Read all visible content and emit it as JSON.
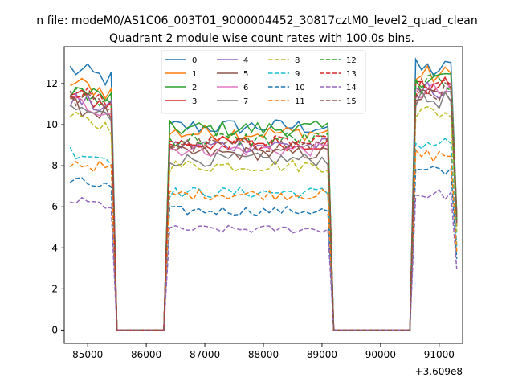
{
  "chart_data": {
    "type": "line",
    "suptitle": "n file: modeM0/AS1C06_003T01_9000004452_30817cztM0_level2_quad_clean",
    "title": "Quadrant 2 module wise count rates with 100.0s bins.",
    "xlabel": "",
    "ylabel": "",
    "x_offset_label": "+3.609e8",
    "xlim": [
      84600,
      91400
    ],
    "ylim": [
      -0.65,
      13.8
    ],
    "xticks": [
      85000,
      86000,
      87000,
      88000,
      89000,
      90000,
      91000
    ],
    "xtick_labels": [
      "85000",
      "86000",
      "87000",
      "88000",
      "89000",
      "90000",
      "91000"
    ],
    "yticks": [
      0,
      2,
      4,
      6,
      8,
      10,
      12
    ],
    "ytick_labels": [
      "0",
      "2",
      "4",
      "6",
      "8",
      "10",
      "12"
    ],
    "grid": false,
    "legend_position": "top-center",
    "legend_columns": 4,
    "segments": [
      {
        "x_start": 84700,
        "x_end": 85500
      },
      {
        "x_start": 85500,
        "x_end": 86400
      },
      {
        "x_start": 86400,
        "x_end": 89200
      },
      {
        "x_start": 89200,
        "x_end": 90600
      },
      {
        "x_start": 90600,
        "x_end": 91300
      }
    ],
    "series": [
      {
        "name": "0",
        "color": "#1f77b4",
        "dash": "solid",
        "levels": [
          12.1,
          0,
          9.9,
          0,
          12.7
        ]
      },
      {
        "name": "1",
        "color": "#ff7f0e",
        "dash": "solid",
        "levels": [
          11.5,
          0,
          9.6,
          0,
          12.4
        ]
      },
      {
        "name": "2",
        "color": "#2ca02c",
        "dash": "solid",
        "levels": [
          11.2,
          0,
          9.8,
          0,
          12.3
        ]
      },
      {
        "name": "3",
        "color": "#d62728",
        "dash": "solid",
        "levels": [
          10.9,
          0,
          9.1,
          0,
          11.9
        ]
      },
      {
        "name": "4",
        "color": "#9467bd",
        "dash": "solid",
        "levels": [
          10.7,
          0,
          9.0,
          0,
          11.7
        ]
      },
      {
        "name": "5",
        "color": "#8c564b",
        "dash": "solid",
        "levels": [
          10.4,
          0,
          8.6,
          0,
          11.4
        ]
      },
      {
        "name": "6",
        "color": "#e377c2",
        "dash": "solid",
        "levels": [
          10.6,
          0,
          8.8,
          0,
          11.6
        ]
      },
      {
        "name": "7",
        "color": "#7f7f7f",
        "dash": "solid",
        "levels": [
          10.3,
          0,
          8.3,
          0,
          11.2
        ]
      },
      {
        "name": "8",
        "color": "#bcbd22",
        "dash": "dashed",
        "levels": [
          9.8,
          0,
          8.0,
          0,
          10.6
        ]
      },
      {
        "name": "9",
        "color": "#17becf",
        "dash": "dashed",
        "levels": [
          8.3,
          0,
          6.7,
          0,
          9.1
        ]
      },
      {
        "name": "10",
        "color": "#1f77b4",
        "dash": "dashed",
        "levels": [
          6.9,
          0,
          5.8,
          0,
          7.7
        ]
      },
      {
        "name": "11",
        "color": "#ff7f0e",
        "dash": "dashed",
        "levels": [
          7.8,
          0,
          6.6,
          0,
          8.5
        ]
      },
      {
        "name": "12",
        "color": "#2ca02c",
        "dash": "dashed",
        "levels": [
          11.0,
          0,
          9.3,
          0,
          12.0
        ]
      },
      {
        "name": "13",
        "color": "#d62728",
        "dash": "dashed",
        "levels": [
          11.1,
          0,
          9.1,
          0,
          11.8
        ]
      },
      {
        "name": "14",
        "color": "#9467bd",
        "dash": "dashed",
        "levels": [
          6.0,
          0,
          4.9,
          0,
          6.6
        ]
      },
      {
        "name": "15",
        "color": "#8c564b",
        "dash": "dashed",
        "levels": [
          10.8,
          0,
          9.0,
          0,
          11.6
        ]
      }
    ]
  }
}
